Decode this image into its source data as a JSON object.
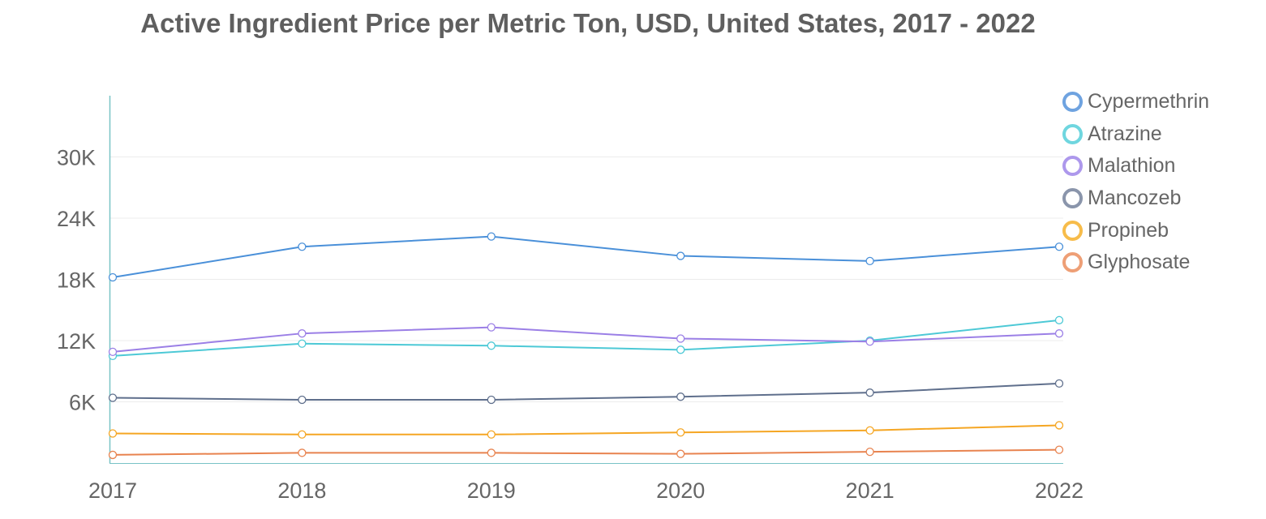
{
  "chart_data": {
    "type": "line",
    "title": "Active Ingredient Price per Metric Ton, USD, United States, 2017 - 2022",
    "x": [
      "2017",
      "2018",
      "2019",
      "2020",
      "2021",
      "2022"
    ],
    "y_ticks": [
      6000,
      12000,
      18000,
      24000,
      30000
    ],
    "y_tick_labels": [
      "6K",
      "12K",
      "18K",
      "24K",
      "30K"
    ],
    "ylim": [
      0,
      36000
    ],
    "xlabel": "",
    "ylabel": "",
    "grid": true,
    "legend_position": "top-right",
    "series": [
      {
        "name": "Cypermethrin",
        "color": "#4a90d9",
        "legend_color": "#6fa3e0",
        "values": [
          18200,
          21200,
          22200,
          20300,
          19800,
          21200
        ]
      },
      {
        "name": "Atrazine",
        "color": "#4dc9d6",
        "legend_color": "#6fd6df",
        "values": [
          10500,
          11700,
          11500,
          11100,
          12000,
          14000
        ]
      },
      {
        "name": "Malathion",
        "color": "#9b7fe6",
        "legend_color": "#ad98ec",
        "values": [
          10900,
          12700,
          13300,
          12200,
          11900,
          12700
        ]
      },
      {
        "name": "Mancozeb",
        "color": "#5f6f8c",
        "legend_color": "#8a95ab",
        "values": [
          6400,
          6200,
          6200,
          6500,
          6900,
          7800
        ]
      },
      {
        "name": "Propineb",
        "color": "#f5a623",
        "legend_color": "#f7bc4a",
        "values": [
          2900,
          2800,
          2800,
          3000,
          3200,
          3700
        ]
      },
      {
        "name": "Glyphosate",
        "color": "#e8834f",
        "legend_color": "#ee9f76",
        "values": [
          800,
          1000,
          1000,
          900,
          1100,
          1300
        ]
      }
    ]
  }
}
